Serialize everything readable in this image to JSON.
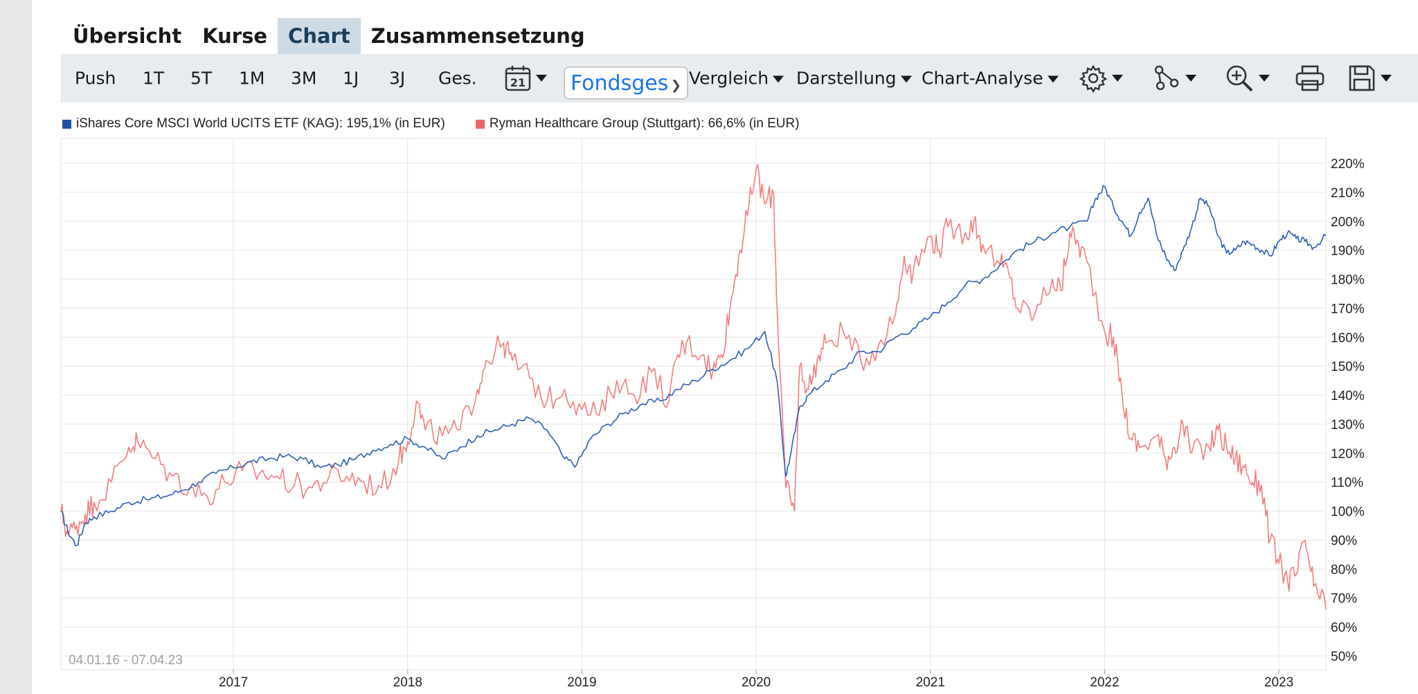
{
  "tabs": [
    {
      "label": "Übersicht"
    },
    {
      "label": "Kurse"
    },
    {
      "label": "Chart",
      "active": true
    },
    {
      "label": "Zusammensetzung"
    }
  ],
  "toolbar": {
    "periods": [
      "Push",
      "1T",
      "5T",
      "1M",
      "3M",
      "1J",
      "3J",
      "Ges."
    ],
    "select_value": "Fondsgesellschaft",
    "vergleich": "Vergleich",
    "darstellung": "Darstellung",
    "chart_analyse": "Chart-Analyse",
    "icons": [
      "calendar-icon",
      "gear-icon",
      "indicator-icon",
      "zoom-in-icon",
      "print-icon",
      "save-icon"
    ],
    "calendar_day": "21"
  },
  "colors": {
    "series_blue": "#2b5fb4",
    "series_red": "#f47c7c",
    "toolbar_bg": "#e7ecf0",
    "tab_active_bg": "#cfdbe4"
  },
  "legend": [
    {
      "text": "iShares Core MSCI World UCITS ETF (KAG): 195,1% (in EUR)",
      "color": "#1f4fa8"
    },
    {
      "text": "Ryman Healthcare Group (Stuttgart): 66,6% (in EUR)",
      "color": "#e86666"
    }
  ],
  "date_range": "04.01.16 - 07.04.23",
  "chart_data": {
    "type": "line",
    "x_ticks": [
      "2017",
      "2018",
      "2019",
      "2020",
      "2021",
      "2022",
      "2023"
    ],
    "y_ticks": [
      "50%",
      "60%",
      "70%",
      "80%",
      "90%",
      "100%",
      "110%",
      "120%",
      "130%",
      "140%",
      "150%",
      "160%",
      "170%",
      "180%",
      "190%",
      "200%",
      "210%",
      "220%"
    ],
    "ylim": [
      45,
      230
    ],
    "xlim": [
      2016.01,
      2023.27
    ],
    "series": [
      {
        "name": "iShares Core MSCI World UCITS ETF (KAG)",
        "x": [
          2016.01,
          2016.05,
          2016.1,
          2016.15,
          2016.2,
          2016.3,
          2016.4,
          2016.5,
          2016.6,
          2016.7,
          2016.8,
          2016.9,
          2017.0,
          2017.1,
          2017.2,
          2017.3,
          2017.4,
          2017.5,
          2017.6,
          2017.7,
          2017.8,
          2017.9,
          2018.0,
          2018.1,
          2018.2,
          2018.3,
          2018.4,
          2018.5,
          2018.6,
          2018.7,
          2018.8,
          2018.9,
          2018.97,
          2019.05,
          2019.15,
          2019.25,
          2019.35,
          2019.45,
          2019.55,
          2019.65,
          2019.75,
          2019.85,
          2019.95,
          2020.05,
          2020.12,
          2020.17,
          2020.2,
          2020.25,
          2020.3,
          2020.4,
          2020.5,
          2020.6,
          2020.7,
          2020.8,
          2020.9,
          2021.0,
          2021.1,
          2021.2,
          2021.3,
          2021.4,
          2021.5,
          2021.6,
          2021.7,
          2021.8,
          2021.9,
          2021.95,
          2022.0,
          2022.05,
          2022.1,
          2022.15,
          2022.2,
          2022.25,
          2022.3,
          2022.35,
          2022.4,
          2022.45,
          2022.5,
          2022.55,
          2022.6,
          2022.65,
          2022.7,
          2022.75,
          2022.8,
          2022.85,
          2022.9,
          2022.95,
          2023.0,
          2023.05,
          2023.1,
          2023.15,
          2023.2,
          2023.27
        ],
        "values": [
          100,
          93,
          88,
          96,
          98,
          100,
          103,
          104,
          105,
          107,
          110,
          113,
          115,
          117,
          118,
          119,
          118,
          115,
          116,
          118,
          121,
          123,
          125,
          122,
          118,
          122,
          126,
          128,
          130,
          132,
          128,
          118,
          116,
          125,
          130,
          134,
          137,
          138,
          142,
          145,
          149,
          152,
          156,
          162,
          145,
          112,
          120,
          136,
          140,
          145,
          149,
          155,
          155,
          160,
          163,
          167,
          172,
          178,
          180,
          185,
          190,
          193,
          196,
          198,
          200,
          208,
          212,
          205,
          200,
          195,
          203,
          208,
          195,
          188,
          183,
          190,
          198,
          208,
          205,
          195,
          189,
          190,
          193,
          192,
          190,
          188,
          193,
          196,
          194,
          193,
          191,
          195
        ]
      },
      {
        "name": "Ryman Healthcare Group (Stuttgart)",
        "x": [
          2016.01,
          2016.05,
          2016.1,
          2016.15,
          2016.2,
          2016.3,
          2016.4,
          2016.45,
          2016.55,
          2016.65,
          2016.75,
          2016.85,
          2016.95,
          2017.05,
          2017.15,
          2017.25,
          2017.35,
          2017.45,
          2017.55,
          2017.65,
          2017.75,
          2017.85,
          2017.95,
          2018.0,
          2018.05,
          2018.1,
          2018.2,
          2018.3,
          2018.4,
          2018.45,
          2018.55,
          2018.6,
          2018.7,
          2018.8,
          2018.9,
          2019.0,
          2019.1,
          2019.2,
          2019.3,
          2019.4,
          2019.5,
          2019.55,
          2019.6,
          2019.7,
          2019.75,
          2019.8,
          2019.85,
          2019.9,
          2019.95,
          2020.0,
          2020.05,
          2020.1,
          2020.12,
          2020.17,
          2020.22,
          2020.25,
          2020.3,
          2020.35,
          2020.4,
          2020.5,
          2020.6,
          2020.7,
          2020.8,
          2020.85,
          2020.9,
          2021.0,
          2021.05,
          2021.1,
          2021.2,
          2021.25,
          2021.3,
          2021.4,
          2021.45,
          2021.5,
          2021.6,
          2021.7,
          2021.75,
          2021.8,
          2021.85,
          2021.9,
          2022.0,
          2022.05,
          2022.1,
          2022.15,
          2022.2,
          2022.3,
          2022.35,
          2022.4,
          2022.45,
          2022.5,
          2022.6,
          2022.65,
          2022.7,
          2022.75,
          2022.8,
          2022.85,
          2022.9,
          2022.95,
          2023.0,
          2023.05,
          2023.1,
          2023.15,
          2023.2,
          2023.27
        ],
        "values": [
          100,
          92,
          95,
          99,
          103,
          110,
          122,
          124,
          118,
          112,
          108,
          105,
          110,
          114,
          113,
          112,
          109,
          108,
          112,
          112,
          110,
          108,
          118,
          124,
          138,
          128,
          126,
          128,
          142,
          152,
          158,
          152,
          146,
          138,
          142,
          135,
          133,
          145,
          140,
          148,
          138,
          154,
          158,
          154,
          148,
          154,
          170,
          188,
          202,
          218,
          206,
          210,
          170,
          108,
          100,
          150,
          142,
          152,
          158,
          162,
          152,
          157,
          168,
          188,
          182,
          195,
          190,
          198,
          196,
          200,
          192,
          185,
          182,
          170,
          168,
          180,
          176,
          196,
          192,
          186,
          162,
          160,
          140,
          125,
          122,
          126,
          118,
          122,
          130,
          120,
          122,
          128,
          122,
          118,
          115,
          110,
          109,
          90,
          82,
          76,
          78,
          90,
          74,
          66
        ]
      }
    ]
  }
}
